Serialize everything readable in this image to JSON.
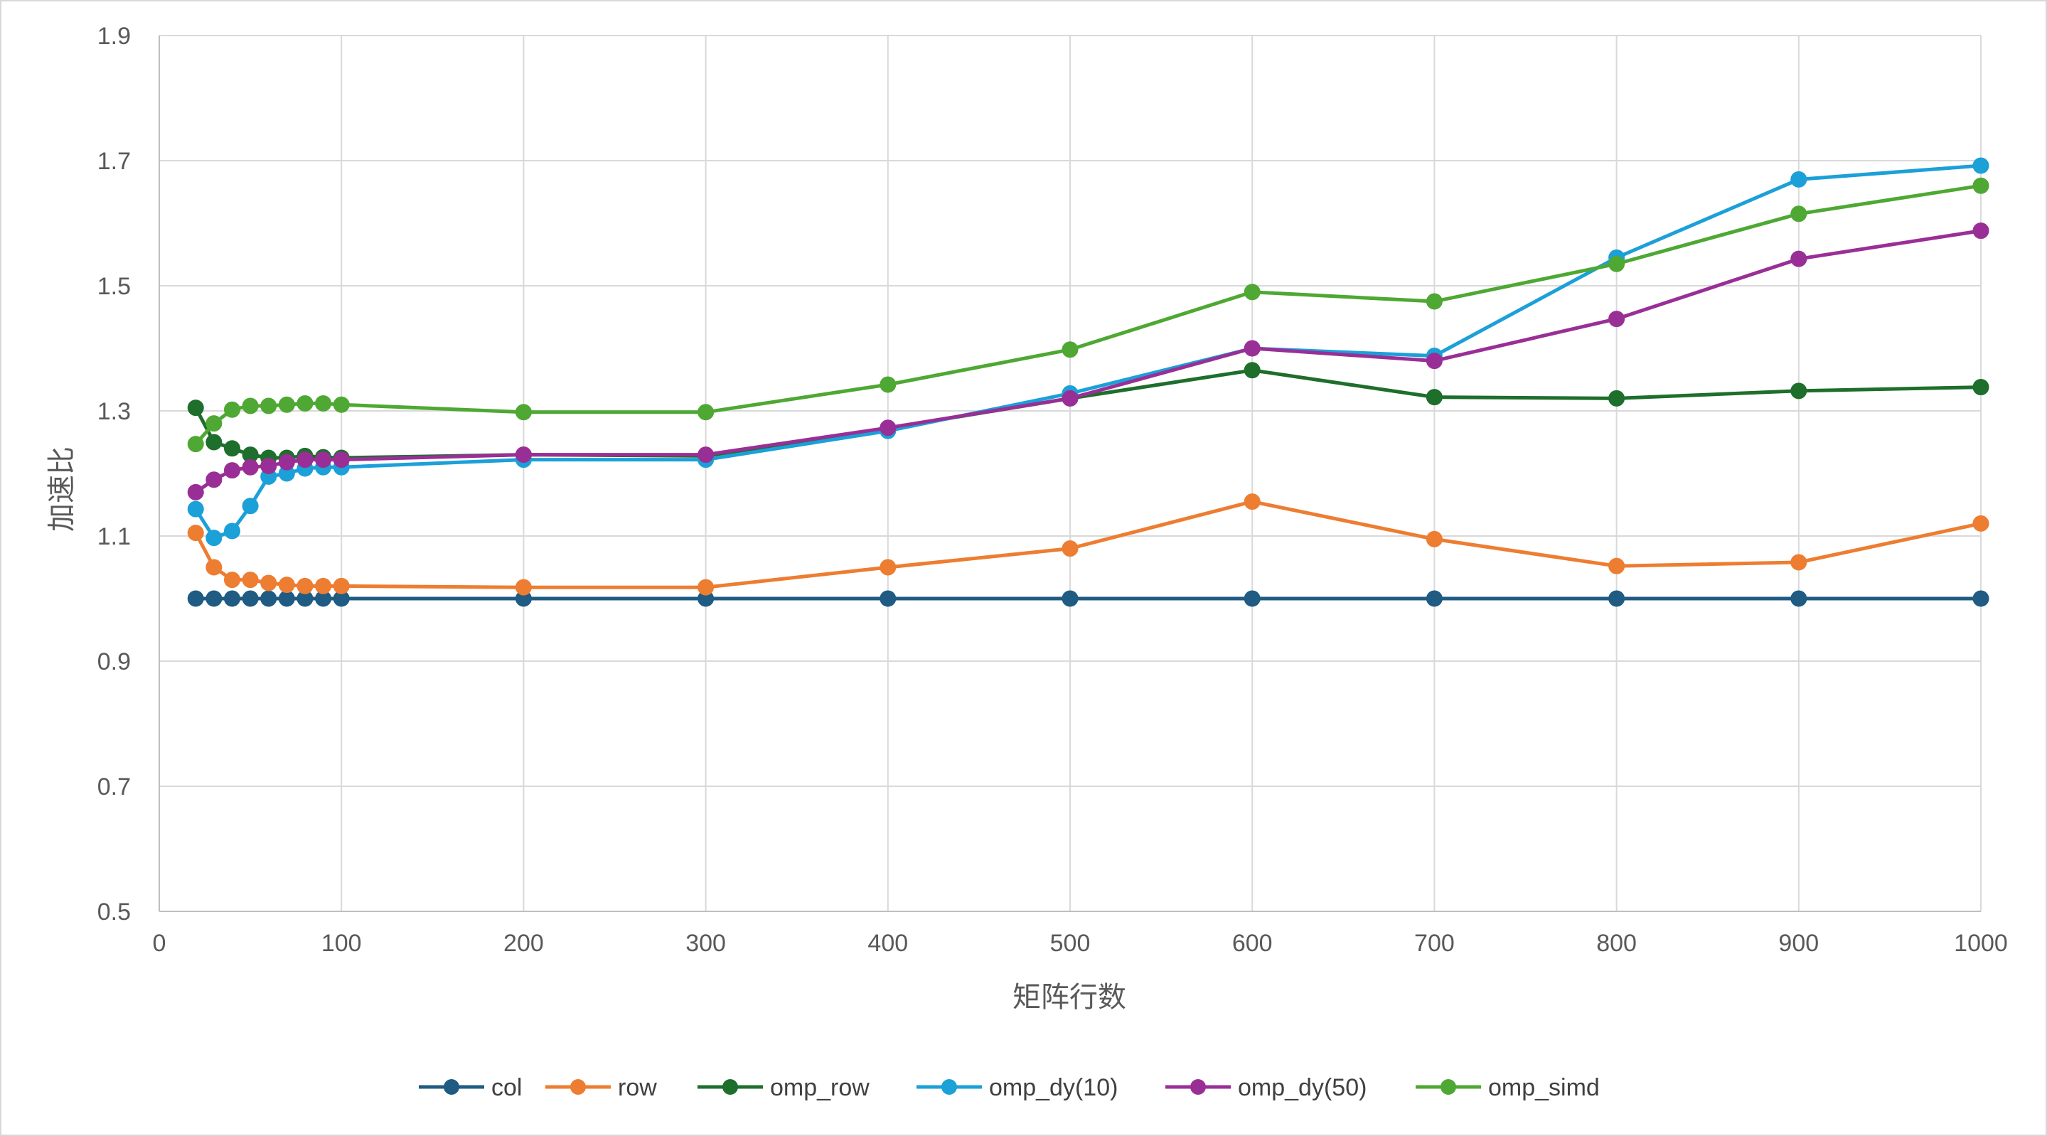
{
  "chart_data": {
    "type": "line",
    "title": "",
    "xlabel": "矩阵行数",
    "ylabel": "加速比",
    "xlim": [
      0,
      1000
    ],
    "ylim": [
      0.5,
      1.9
    ],
    "x_ticks": [
      0,
      100,
      200,
      300,
      400,
      500,
      600,
      700,
      800,
      900,
      1000
    ],
    "y_ticks": [
      0.5,
      0.7,
      0.9,
      1.1,
      1.3,
      1.5,
      1.7,
      1.9
    ],
    "y_tick_labels": [
      "0.5",
      "0.7",
      "0.9",
      "1.1",
      "1.3",
      "1.5",
      "1.7",
      "1.9"
    ],
    "grid": true,
    "legend_position": "bottom",
    "x": [
      20,
      30,
      40,
      50,
      60,
      70,
      80,
      90,
      100,
      200,
      300,
      400,
      500,
      600,
      700,
      800,
      900,
      1000
    ],
    "series": [
      {
        "name": "col",
        "color": "#1f5b82",
        "values": [
          1.0,
          1.0,
          1.0,
          1.0,
          1.0,
          1.0,
          1.0,
          1.0,
          1.0,
          1.0,
          1.0,
          1.0,
          1.0,
          1.0,
          1.0,
          1.0,
          1.0,
          1.0
        ]
      },
      {
        "name": "row",
        "color": "#ed7d31",
        "values": [
          1.105,
          1.05,
          1.03,
          1.03,
          1.025,
          1.022,
          1.02,
          1.02,
          1.02,
          1.018,
          1.018,
          1.05,
          1.08,
          1.155,
          1.095,
          1.052,
          1.058,
          1.12
        ]
      },
      {
        "name": "omp_row",
        "color": "#1e6e2c",
        "values": [
          1.305,
          1.25,
          1.24,
          1.23,
          1.225,
          1.225,
          1.228,
          1.226,
          1.225,
          1.23,
          1.228,
          1.272,
          1.32,
          1.365,
          1.322,
          1.32,
          1.332,
          1.338
        ]
      },
      {
        "name": "omp_dy(10)",
        "color": "#1ba0d8",
        "values": [
          1.143,
          1.097,
          1.108,
          1.148,
          1.195,
          1.2,
          1.208,
          1.21,
          1.21,
          1.222,
          1.222,
          1.268,
          1.328,
          1.4,
          1.388,
          1.545,
          1.67,
          1.692
        ]
      },
      {
        "name": "omp_dy(50)",
        "color": "#992f96",
        "values": [
          1.17,
          1.19,
          1.205,
          1.21,
          1.212,
          1.218,
          1.222,
          1.222,
          1.222,
          1.23,
          1.23,
          1.273,
          1.32,
          1.4,
          1.38,
          1.447,
          1.543,
          1.588
        ]
      },
      {
        "name": "omp_simd",
        "color": "#4ea833",
        "values": [
          1.247,
          1.28,
          1.302,
          1.308,
          1.308,
          1.31,
          1.312,
          1.312,
          1.31,
          1.298,
          1.298,
          1.342,
          1.398,
          1.49,
          1.475,
          1.535,
          1.615,
          1.66
        ]
      }
    ]
  }
}
